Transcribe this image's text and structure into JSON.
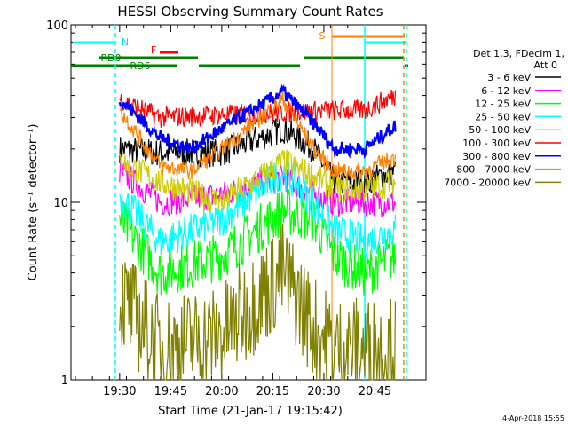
{
  "chart_data": {
    "type": "line",
    "title": "HESSI Observing Summary Count Rates",
    "xlabel": "Start Time (21-Jan-17 19:15:42)",
    "ylabel": "Count Rate (s⁻¹ detector⁻¹)",
    "yscale": "log",
    "ylim": [
      1,
      100
    ],
    "xlim_minutes": [
      "19:15:42",
      "21:00:00"
    ],
    "x_ticks": [
      "19:30",
      "19:45",
      "20:00",
      "20:15",
      "20:30",
      "20:45"
    ],
    "y_ticks": [
      "1",
      "10",
      "100"
    ],
    "footer": "4-Apr-2018 15:55",
    "legend": {
      "header": [
        "Det 1,3, FDecim 1,",
        "Att 0"
      ],
      "placement": "right"
    },
    "series": [
      {
        "name": "3 - 6 keV",
        "color": "#000000",
        "values": [
          [
            19.5,
            20
          ],
          [
            19.7,
            19
          ],
          [
            20.0,
            19
          ],
          [
            20.3,
            26
          ],
          [
            20.45,
            20
          ],
          [
            20.55,
            13
          ],
          [
            20.7,
            13
          ],
          [
            20.85,
            15
          ]
        ]
      },
      {
        "name": "6 - 12 keV",
        "color": "#ff00ff",
        "values": [
          [
            19.5,
            15
          ],
          [
            19.7,
            10
          ],
          [
            20.0,
            11
          ],
          [
            20.3,
            14
          ],
          [
            20.45,
            11
          ],
          [
            20.55,
            10
          ],
          [
            20.7,
            10
          ],
          [
            20.85,
            10
          ]
        ]
      },
      {
        "name": "12 - 25 keV",
        "color": "#00ff00",
        "values": [
          [
            19.5,
            8
          ],
          [
            19.7,
            4
          ],
          [
            20.0,
            5
          ],
          [
            20.3,
            9
          ],
          [
            20.45,
            8
          ],
          [
            20.55,
            5
          ],
          [
            20.7,
            4
          ],
          [
            20.85,
            5
          ]
        ]
      },
      {
        "name": "25 - 50 keV",
        "color": "#00ffff",
        "values": [
          [
            19.5,
            11
          ],
          [
            19.7,
            6
          ],
          [
            20.0,
            8
          ],
          [
            20.3,
            15
          ],
          [
            20.45,
            10
          ],
          [
            20.55,
            7
          ],
          [
            20.7,
            6
          ],
          [
            20.85,
            7
          ]
        ]
      },
      {
        "name": "50 - 100 keV",
        "color": "#cccc00",
        "values": [
          [
            19.5,
            17
          ],
          [
            19.7,
            13
          ],
          [
            20.0,
            10
          ],
          [
            20.3,
            17
          ],
          [
            20.45,
            14
          ],
          [
            20.55,
            12
          ],
          [
            20.7,
            12
          ],
          [
            20.85,
            13
          ]
        ]
      },
      {
        "name": "100 - 300 keV",
        "color": "#ff0000",
        "values": [
          [
            19.5,
            38
          ],
          [
            19.7,
            30
          ],
          [
            20.55,
            33
          ],
          [
            20.7,
            33
          ],
          [
            20.85,
            40
          ]
        ]
      },
      {
        "name": "300 - 800 keV",
        "color": "#0000ff",
        "values": [
          [
            19.5,
            38
          ],
          [
            19.7,
            23
          ],
          [
            19.85,
            20
          ],
          [
            20.0,
            26
          ],
          [
            20.3,
            42
          ],
          [
            20.45,
            28
          ],
          [
            20.55,
            20
          ],
          [
            20.7,
            20
          ],
          [
            20.85,
            27
          ]
        ]
      },
      {
        "name": "800 - 7000 keV",
        "color": "#ff8000",
        "values": [
          [
            19.5,
            33
          ],
          [
            19.7,
            16
          ],
          [
            19.85,
            15
          ],
          [
            20.0,
            20
          ],
          [
            20.3,
            38
          ],
          [
            20.45,
            20
          ],
          [
            20.55,
            15
          ],
          [
            20.7,
            15
          ],
          [
            20.85,
            18
          ]
        ]
      },
      {
        "name": "7000 - 20000 keV",
        "color": "#808000",
        "values": [
          [
            19.5,
            3
          ],
          [
            19.7,
            1.5
          ],
          [
            20.0,
            1.8
          ],
          [
            20.3,
            4
          ],
          [
            20.45,
            2
          ],
          [
            20.55,
            1.5
          ],
          [
            20.7,
            1.5
          ],
          [
            20.85,
            1.5
          ]
        ]
      }
    ],
    "annotations": {
      "N": "N",
      "S": "S",
      "F": "F",
      "RD0": "RD0",
      "RD6": "RD6"
    }
  }
}
